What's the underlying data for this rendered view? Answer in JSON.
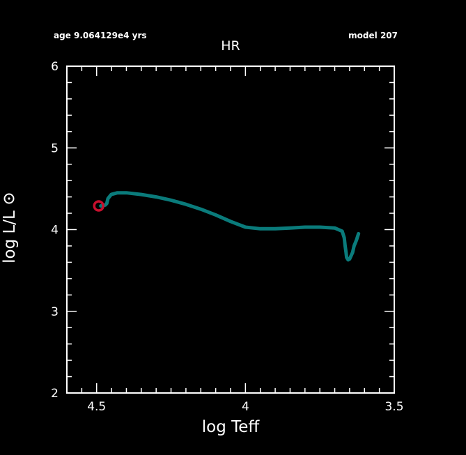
{
  "header": {
    "age_text": "age 9.064129e4 yrs",
    "model_text": "model 207"
  },
  "chart_data": {
    "type": "line",
    "title": "HR",
    "xlabel": "log Teff",
    "ylabel": "log L/L⊙",
    "ylabel_text": "log L/L",
    "xlim": [
      4.6,
      3.5
    ],
    "ylim": [
      2,
      6
    ],
    "x_reversed": true,
    "x_ticks": [
      4.5,
      4.0,
      3.5
    ],
    "x_tick_labels": [
      "4.5",
      "4",
      "3.5"
    ],
    "y_ticks": [
      2,
      3,
      4,
      5,
      6
    ],
    "y_tick_labels": [
      "2",
      "3",
      "4",
      "5",
      "6"
    ],
    "grid": false,
    "colors": {
      "track": "#0a7b7b",
      "marker": "#c8102e",
      "axes": "#ffffff",
      "background": "#000000"
    },
    "series": [
      {
        "x": [
          4.486,
          4.471,
          4.466,
          4.462,
          4.451,
          4.43,
          4.4,
          4.35,
          4.3,
          4.25,
          4.2,
          4.15,
          4.1,
          4.05,
          4.0,
          3.95,
          3.9,
          3.85,
          3.8,
          3.75,
          3.7,
          3.675,
          3.668,
          3.665,
          3.662,
          3.66,
          3.655,
          3.65,
          3.64,
          3.635,
          3.627,
          3.62
        ],
        "y": [
          4.29,
          4.3,
          4.32,
          4.38,
          4.43,
          4.45,
          4.45,
          4.43,
          4.4,
          4.36,
          4.31,
          4.25,
          4.18,
          4.1,
          4.03,
          4.01,
          4.01,
          4.02,
          4.03,
          4.03,
          4.02,
          3.98,
          3.9,
          3.8,
          3.72,
          3.66,
          3.63,
          3.64,
          3.72,
          3.8,
          3.87,
          3.95
        ]
      }
    ],
    "current_point": {
      "x": 4.493,
      "y": 4.29
    }
  }
}
